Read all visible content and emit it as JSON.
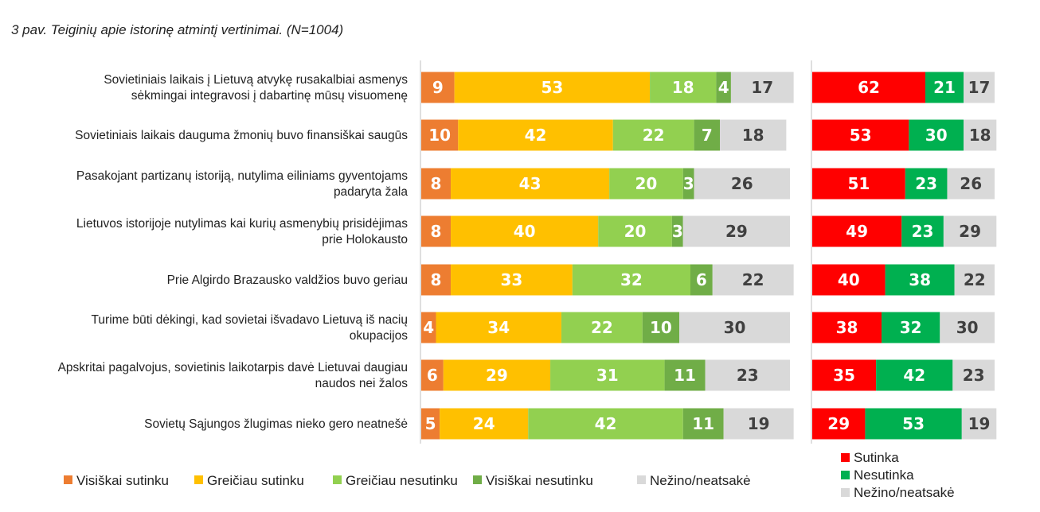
{
  "caption": "3 pav. Teiginių apie istorinę atmintį vertinimai. (N=1004)",
  "colors": {
    "visiskai_sutinku": "#ED7D31",
    "greiciau_sutinku": "#FFC000",
    "greiciau_nesutinku": "#92D050",
    "visiskai_nesutinku": "#70AD47",
    "nezino_detail": "#D9D9D9",
    "sutinka": "#FF0000",
    "nesutinka": "#00B050",
    "nezino_summary": "#D9D9D9"
  },
  "chart_data": [
    {
      "type": "bar",
      "orientation": "horizontal",
      "stacked": true,
      "xlim": [
        0,
        100
      ],
      "categories": [
        "Sovietiniais laikais į Lietuvą atvykę rusakalbiai asmenys sėkmingai integravosi į dabartinę mūsų visuomenę",
        "Sovietiniais laikais dauguma žmonių buvo finansiškai saugūs",
        "Pasakojant partizanų istoriją, nutylima eiliniams gyventojams padaryta žala",
        "Lietuvos istorijoje nutylimas kai kurių asmenybių prisidėjimas prie Holokausto",
        "Prie Algirdo Brazausko valdžios buvo geriau",
        "Turime būti dėkingi, kad sovietai išvadavo Lietuvą iš nacių okupacijos",
        "Apskritai pagalvojus, sovietinis laikotarpis davė Lietuvai daugiau naudos nei žalos",
        "Sovietų Sąjungos žlugimas nieko gero neatnešė"
      ],
      "series": [
        {
          "name": "Visiškai sutinku",
          "values": [
            9,
            10,
            8,
            8,
            8,
            4,
            6,
            5
          ]
        },
        {
          "name": "Greičiau sutinku",
          "values": [
            53,
            42,
            43,
            40,
            33,
            34,
            29,
            24
          ]
        },
        {
          "name": "Greičiau nesutinku",
          "values": [
            18,
            22,
            20,
            20,
            32,
            22,
            31,
            42
          ]
        },
        {
          "name": "Visiškai nesutinku",
          "values": [
            4,
            7,
            3,
            3,
            6,
            10,
            11,
            11
          ]
        },
        {
          "name": "Nežino/neatsakė",
          "values": [
            17,
            18,
            26,
            29,
            22,
            30,
            23,
            19
          ]
        }
      ],
      "legend_position": "bottom"
    },
    {
      "type": "bar",
      "orientation": "horizontal",
      "stacked": true,
      "xlim": [
        0,
        100
      ],
      "series": [
        {
          "name": "Sutinka",
          "values": [
            62,
            53,
            51,
            49,
            40,
            38,
            35,
            29
          ]
        },
        {
          "name": "Nesutinka",
          "values": [
            21,
            30,
            23,
            23,
            38,
            32,
            42,
            53
          ]
        },
        {
          "name": "Nežino/neatsakė",
          "values": [
            17,
            18,
            26,
            29,
            22,
            30,
            23,
            19
          ]
        }
      ],
      "legend_position": "bottom"
    }
  ]
}
